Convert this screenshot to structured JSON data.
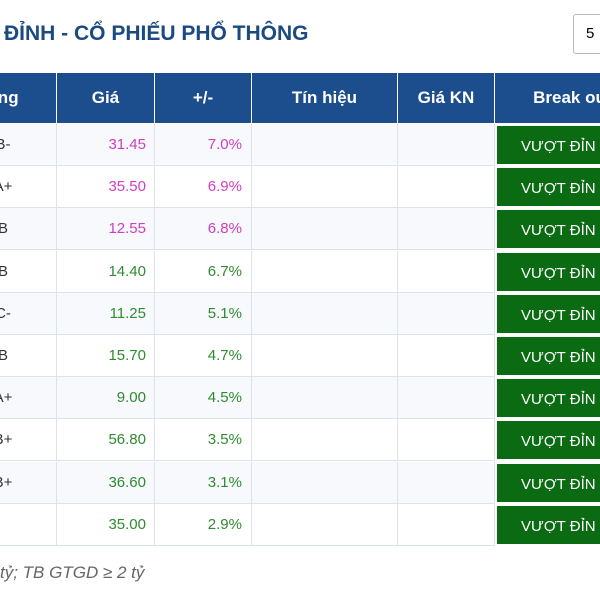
{
  "header": {
    "title": "ĐỈNH - CỔ PHIẾU PHỔ THÔNG",
    "select": "5"
  },
  "table": {
    "columns": [
      "ting",
      "Giá",
      "+/-",
      "Tín hiệu",
      "Giá KN",
      "Break ou"
    ],
    "rows": [
      {
        "rating": "B-",
        "price": "31.45",
        "change": "7.0%",
        "breakout": "VƯỢT ĐỈN",
        "color": "#d23cc0"
      },
      {
        "rating": "A+",
        "price": "35.50",
        "change": "6.9%",
        "breakout": "VƯỢT ĐỈN",
        "color": "#d23cc0"
      },
      {
        "rating": "B",
        "price": "12.55",
        "change": "6.8%",
        "breakout": "VƯỢT ĐỈN",
        "color": "#d23cc0"
      },
      {
        "rating": "B",
        "price": "14.40",
        "change": "6.7%",
        "breakout": "VƯỢT ĐỈN",
        "color": "#2e8b2e"
      },
      {
        "rating": "C-",
        "price": "11.25",
        "change": "5.1%",
        "breakout": "VƯỢT ĐỈN",
        "color": "#2e8b2e"
      },
      {
        "rating": "B",
        "price": "15.70",
        "change": "4.7%",
        "breakout": "VƯỢT ĐỈN",
        "color": "#2e8b2e"
      },
      {
        "rating": "A+",
        "price": "9.00",
        "change": "4.5%",
        "breakout": "VƯỢT ĐỈN",
        "color": "#2e8b2e"
      },
      {
        "rating": "B+",
        "price": "56.80",
        "change": "3.5%",
        "breakout": "VƯỢT ĐỈN",
        "color": "#2e8b2e"
      },
      {
        "rating": "B+",
        "price": "36.60",
        "change": "3.1%",
        "breakout": "VƯỢT ĐỈN",
        "color": "#2e8b2e"
      },
      {
        "rating": null,
        "price": "35.00",
        "change": "2.9%",
        "breakout": "VƯỢT ĐỈN",
        "color": "#2e8b2e"
      }
    ]
  },
  "footer": {
    "note": "tỷ; TB GTGD ≥ 2 tỷ"
  }
}
